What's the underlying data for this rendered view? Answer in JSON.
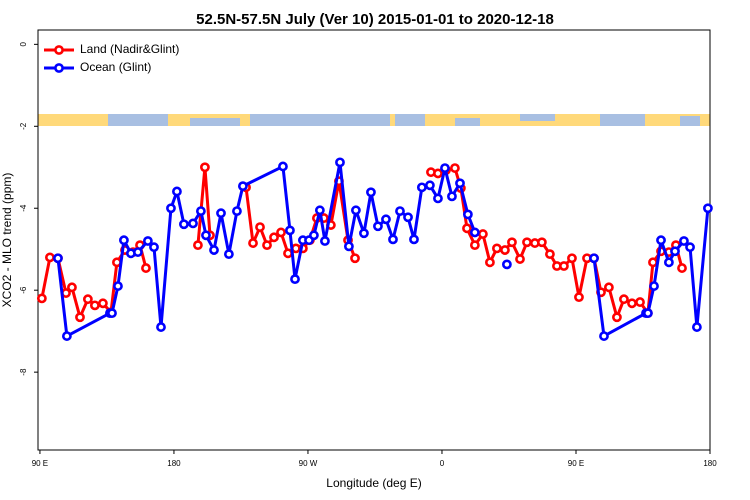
{
  "chart_data": {
    "type": "line",
    "title": "52.5N-57.5N July (Ver 10)   2015-01-01 to 2020-12-18",
    "x_label": "Longitude (deg E)",
    "y_label": "XCO2 - MLO trend (ppm)",
    "xlim": [
      88.7,
      540
    ],
    "ylim": [
      -9.9,
      0.35
    ],
    "xticks": [
      {
        "value": 90,
        "label": "90 E"
      },
      180,
      {
        "value": 270,
        "label": "90 W"
      },
      {
        "value": 360,
        "label": "0"
      },
      {
        "value": 450,
        "label": "90 E"
      },
      {
        "value": 540,
        "label": "180"
      }
    ],
    "yticks": [
      0,
      -2,
      -4,
      -6,
      -8
    ],
    "legend": "top-left",
    "series": [
      {
        "name": "Land (Nadir&Glint)",
        "color": "#ff0000",
        "x": [
          91.3,
          96.7,
          102.1,
          107.5,
          111.5,
          116.9,
          122.2,
          126.9,
          132.3,
          137.7,
          141.7,
          147.1,
          152.5,
          157.2,
          161.2,
          null,
          196.1,
          200.8,
          204.2,
          null,
          228.4,
          233.1,
          237.8,
          242.5,
          247.2,
          251.9,
          256.6,
          261.9,
          266.6,
          271.3,
          276.0,
          280.7,
          285.4,
          290.8,
          296.9,
          301.6,
          null,
          352.6,
          357.3,
          362.7,
          368.7,
          372.7,
          376.8,
          382.1,
          387.5,
          392.2,
          396.9,
          402.3,
          407.0,
          412.4,
          417.1,
          422.4,
          427.1,
          432.5,
          437.2,
          441.9,
          447.3,
          452.0,
          457.4,
          462.1,
          466.8,
          472.1,
          477.5,
          482.2,
          487.6,
          493.0,
          498.3,
          501.7,
          507.1,
          512.4,
          517.1,
          521.2
        ],
        "values": [
          -6.2,
          -5.2,
          -5.22,
          -6.07,
          -5.93,
          -6.66,
          -6.22,
          -6.37,
          -6.32,
          -6.54,
          -5.32,
          -5.02,
          -5.07,
          -4.9,
          -5.46,
          null,
          -4.9,
          -3.0,
          -4.66,
          null,
          -3.49,
          -4.85,
          -4.46,
          -4.9,
          -4.71,
          -4.59,
          -5.1,
          -4.98,
          -4.98,
          -4.78,
          -4.24,
          -4.24,
          -4.41,
          -3.34,
          -4.78,
          -5.22,
          null,
          -3.12,
          -3.15,
          -3.07,
          -3.02,
          -3.51,
          -4.49,
          -4.9,
          -4.63,
          -5.32,
          -4.98,
          -5.02,
          -4.83,
          -5.24,
          -4.83,
          -4.85,
          -4.83,
          -5.12,
          -5.41,
          -5.41,
          -5.22,
          -6.17,
          -5.22,
          -5.22,
          -6.05,
          -5.93,
          -6.66,
          -6.22,
          -6.32,
          -6.29,
          -6.56,
          -5.32,
          -5.05,
          -5.07,
          -4.9,
          -5.46
        ]
      },
      {
        "name": "Ocean (Glint)",
        "color": "#0000ff",
        "x": [
          102.1,
          108.1,
          137.0,
          138.4,
          142.4,
          146.4,
          151.1,
          155.8,
          162.5,
          166.6,
          171.3,
          178.0,
          182.0,
          186.7,
          192.8,
          198.1,
          201.5,
          206.9,
          211.6,
          216.9,
          222.3,
          226.3,
          253.2,
          257.9,
          261.3,
          266.6,
          270.7,
          274.0,
          278.0,
          281.4,
          291.5,
          297.5,
          302.2,
          307.6,
          312.3,
          317.0,
          322.4,
          327.1,
          331.8,
          337.2,
          341.2,
          346.5,
          351.9,
          357.3,
          362.0,
          366.7,
          372.1,
          377.4,
          382.1,
          null,
          403.6,
          null,
          462.1,
          468.8,
          497.0,
          498.3,
          502.4,
          507.1,
          512.4,
          516.5,
          522.5,
          526.6,
          531.2,
          538.6
        ],
        "values": [
          -5.22,
          -7.12,
          -6.56,
          -6.56,
          -5.9,
          -4.78,
          -5.1,
          -5.07,
          -4.8,
          -4.95,
          -6.9,
          -4.0,
          -3.59,
          -4.39,
          -4.37,
          -4.07,
          -4.66,
          -5.02,
          -4.12,
          -5.12,
          -4.07,
          -3.46,
          -2.98,
          -4.54,
          -5.73,
          -4.78,
          -4.78,
          -4.66,
          -4.05,
          -4.8,
          -2.88,
          -4.93,
          -4.05,
          -4.61,
          -3.61,
          -4.44,
          -4.27,
          -4.76,
          -4.07,
          -4.22,
          -4.76,
          -3.49,
          -3.44,
          -3.76,
          -3.02,
          -3.71,
          -3.39,
          -4.15,
          -4.59,
          null,
          -5.37,
          null,
          -5.22,
          -7.12,
          -6.56,
          -6.56,
          -5.9,
          -4.78,
          -5.32,
          -5.05,
          -4.8,
          -4.95,
          -6.9,
          -4.0
        ]
      }
    ]
  }
}
